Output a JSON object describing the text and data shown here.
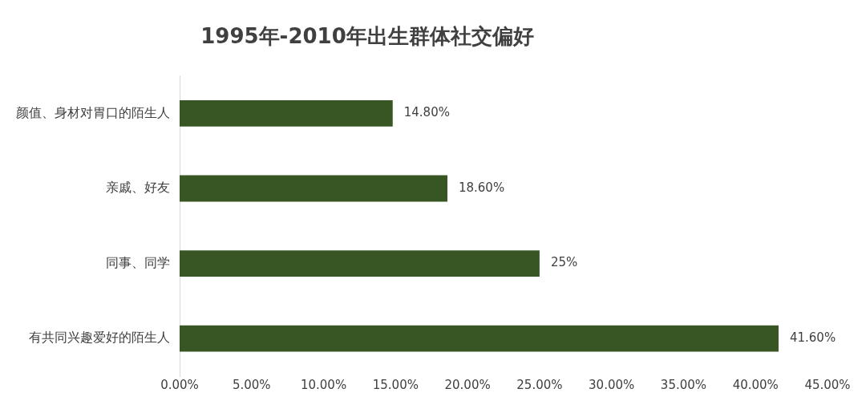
{
  "chart_data": {
    "type": "bar",
    "orientation": "horizontal",
    "title": "1995年-2010年出生群体社交偏好",
    "categories": [
      "颜值、身材对胃口的陌生人",
      "亲戚、好友",
      "同事、同学",
      "有共同兴趣爱好的陌生人"
    ],
    "values": [
      14.8,
      18.6,
      25,
      41.6
    ],
    "value_labels": [
      "14.80%",
      "18.60%",
      "25%",
      "41.60%"
    ],
    "color": "#375623",
    "xlim": [
      0,
      45
    ],
    "xticks": [
      {
        "value": 0,
        "label": "0.00%"
      },
      {
        "value": 5,
        "label": "5.00%"
      },
      {
        "value": 10,
        "label": "10.00%"
      },
      {
        "value": 15,
        "label": "15.00%"
      },
      {
        "value": 20,
        "label": "20.00%"
      },
      {
        "value": 25,
        "label": "25.00%"
      },
      {
        "value": 30,
        "label": "30.00%"
      },
      {
        "value": 35,
        "label": "35.00%"
      },
      {
        "value": 40,
        "label": "40.00%"
      },
      {
        "value": 45,
        "label": "45.00%"
      }
    ],
    "grid": false,
    "legend": false
  }
}
